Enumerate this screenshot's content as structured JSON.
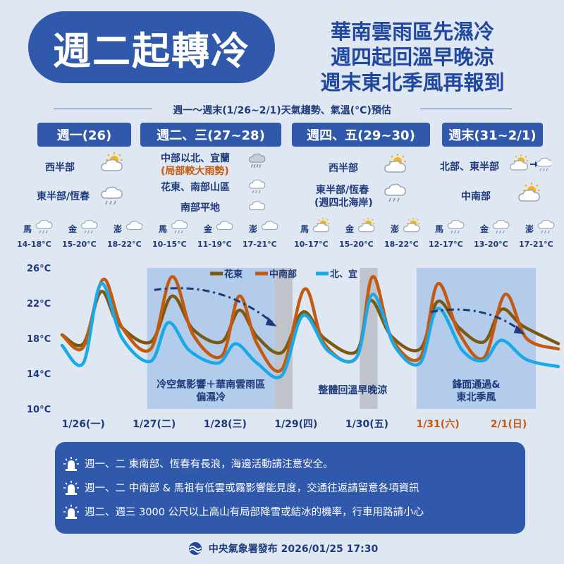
{
  "header": {
    "badge": "週二起轉冷",
    "headlines": [
      "華南雲雨區先濕冷",
      "週四起回溫早晚涼",
      "週末東北季風再報到"
    ]
  },
  "subtitle": "週一～週末(1/26~2/1)天氣趨勢、氣溫(°C)預估",
  "periods": [
    {
      "label": "週一(26)",
      "regions": [
        {
          "text": "西半部",
          "icon": "partly-cloudy-sun-icon"
        },
        {
          "text": "東半部/恆春",
          "icon": "rain-cloud-icon"
        }
      ]
    },
    {
      "label": "週二、三(27~28)",
      "regions": [
        {
          "text": "中部以北、宜蘭",
          "note": "(局部較大雨勢)",
          "icon": "heavy-rain-cloud-icon"
        },
        {
          "text": "花東、南部山區",
          "icon": "rain-cloud-icon"
        },
        {
          "text": "南部平地",
          "icon": "cloud-icon"
        }
      ]
    },
    {
      "label": "週四、五(29~30)",
      "regions": [
        {
          "text": "西半部",
          "icon": "partly-cloudy-sun-icon"
        },
        {
          "text": "東半部/恆春",
          "note": "(週四北海岸)",
          "icon": "rain-cloud-icon"
        }
      ]
    },
    {
      "label": "週末(31~2/1)",
      "regions": [
        {
          "text": "北部、東半部",
          "icon": "sun-to-rain-cloud-icon"
        },
        {
          "text": "中南部",
          "icon": "partly-cloudy-sun-icon"
        }
      ]
    }
  ],
  "islands": [
    [
      {
        "name": "馬",
        "range": "14-18°C",
        "icon": "rain-cloud-icon"
      },
      {
        "name": "金",
        "range": "15-20°C",
        "icon": "rain-cloud-icon"
      },
      {
        "name": "澎",
        "range": "18-22°C",
        "icon": "cloud-icon"
      }
    ],
    [
      {
        "name": "馬",
        "range": "10-15°C",
        "icon": "rain-cloud-icon"
      },
      {
        "name": "金",
        "range": "11-19°C",
        "icon": "cloud-icon"
      },
      {
        "name": "澎",
        "range": "17-21°C",
        "icon": "cloud-icon"
      }
    ],
    [
      {
        "name": "馬",
        "range": "10-17°C",
        "icon": "partly-cloudy-sun-icon"
      },
      {
        "name": "金",
        "range": "15-20°C",
        "icon": "partly-cloudy-sun-icon"
      },
      {
        "name": "澎",
        "range": "18-22°C",
        "icon": "partly-cloudy-sun-icon"
      }
    ],
    [
      {
        "name": "馬",
        "range": "12-17°C",
        "icon": "rain-cloud-icon"
      },
      {
        "name": "金",
        "range": "13-20°C",
        "icon": "rain-cloud-icon"
      },
      {
        "name": "澎",
        "range": "17-21°C",
        "icon": "rain-cloud-icon"
      }
    ]
  ],
  "chart_data": {
    "type": "line",
    "ylim": [
      10,
      26
    ],
    "yticks": [
      "10°C",
      "14°C",
      "18°C",
      "22°C",
      "26°C"
    ],
    "ytick_values": [
      10,
      14,
      18,
      22,
      26
    ],
    "xlim": [
      0,
      7
    ],
    "x_labels": [
      "1/26(一)",
      "1/27(二)",
      "1/28(三)",
      "1/29(四)",
      "1/30(五)",
      "1/31(六)",
      "2/1(日)"
    ],
    "x_label_colors": [
      "#1e3a7a",
      "#1e3a7a",
      "#1e3a7a",
      "#1e3a7a",
      "#1e3a7a",
      "#c45a10",
      "#c45a10"
    ],
    "grid": false,
    "legend_position": "top",
    "series": [
      {
        "name": "花東",
        "color": "#7a5a12",
        "points": [
          [
            0,
            18.4
          ],
          [
            0.3,
            17.4
          ],
          [
            0.55,
            23.3
          ],
          [
            0.8,
            19.6
          ],
          [
            1.25,
            17.6
          ],
          [
            1.55,
            22.8
          ],
          [
            1.85,
            19.0
          ],
          [
            2.25,
            17.6
          ],
          [
            2.5,
            21.2
          ],
          [
            2.75,
            18.2
          ],
          [
            3.1,
            16.4
          ],
          [
            3.4,
            21.0
          ],
          [
            3.7,
            18.0
          ],
          [
            4.15,
            16.5
          ],
          [
            4.35,
            22.3
          ],
          [
            4.65,
            18.2
          ],
          [
            5.05,
            16.8
          ],
          [
            5.3,
            22.2
          ],
          [
            5.6,
            19.2
          ],
          [
            5.95,
            17.6
          ],
          [
            6.2,
            21.3
          ],
          [
            6.5,
            19.4
          ],
          [
            7,
            17.4
          ]
        ]
      },
      {
        "name": "中南部",
        "color": "#c45a10",
        "points": [
          [
            0,
            18.4
          ],
          [
            0.3,
            17.0
          ],
          [
            0.58,
            24.7
          ],
          [
            0.85,
            19.2
          ],
          [
            1.25,
            16.8
          ],
          [
            1.55,
            25.0
          ],
          [
            1.85,
            18.4
          ],
          [
            2.25,
            16.0
          ],
          [
            2.5,
            22.8
          ],
          [
            2.75,
            17.4
          ],
          [
            3.1,
            14.5
          ],
          [
            3.42,
            23.6
          ],
          [
            3.7,
            17.4
          ],
          [
            4.15,
            15.8
          ],
          [
            4.38,
            25.0
          ],
          [
            4.65,
            18.0
          ],
          [
            5.05,
            15.8
          ],
          [
            5.3,
            24.2
          ],
          [
            5.6,
            18.6
          ],
          [
            5.95,
            15.8
          ],
          [
            6.25,
            23.0
          ],
          [
            6.55,
            18.0
          ],
          [
            7,
            16.8
          ]
        ]
      },
      {
        "name": "北、宜",
        "color": "#1aa9e8",
        "points": [
          [
            0,
            17.2
          ],
          [
            0.3,
            15.2
          ],
          [
            0.55,
            24.2
          ],
          [
            0.85,
            18.0
          ],
          [
            1.25,
            15.4
          ],
          [
            1.5,
            19.8
          ],
          [
            1.8,
            16.6
          ],
          [
            2.2,
            15.2
          ],
          [
            2.45,
            17.4
          ],
          [
            2.75,
            15.2
          ],
          [
            3.1,
            13.8
          ],
          [
            3.4,
            20.6
          ],
          [
            3.75,
            16.6
          ],
          [
            4.15,
            15.8
          ],
          [
            4.38,
            23.0
          ],
          [
            4.7,
            17.0
          ],
          [
            5.05,
            15.2
          ],
          [
            5.3,
            21.4
          ],
          [
            5.65,
            16.6
          ],
          [
            5.95,
            15.5
          ],
          [
            6.2,
            17.8
          ],
          [
            6.55,
            15.6
          ],
          [
            7,
            14.8
          ]
        ]
      }
    ],
    "shaded_regions": [
      {
        "from": 1.2,
        "to": 3.0,
        "label": [
          "冷空氣影響＋華南雲雨區",
          "偏濕冷"
        ]
      },
      {
        "from": 3.0,
        "to": 3.25,
        "gray": true
      },
      {
        "from": 4.2,
        "to": 4.45,
        "gray": true
      },
      {
        "from": 5.0,
        "to": 7.0,
        "label": [
          "鋒面通過&",
          "東北季風"
        ]
      }
    ],
    "unshaded_label": {
      "at": 4.1,
      "label": "整體回溫早晚涼"
    },
    "trend_arrows": [
      {
        "from": [
          1.3,
          23.5
        ],
        "to": [
          3.0,
          19.6
        ]
      },
      {
        "from": [
          5.2,
          21.0
        ],
        "to": [
          6.5,
          18.7
        ]
      }
    ]
  },
  "notes": [
    "週一、二  東南部、恆春有長浪，海邊活動請注意安全。",
    "週一、二  中南部 & 馬祖有低雲或霧影響能見度，交通往返請留意各項資訊",
    "週二、週三 3000 公尺以上高山有局部降雪或結冰的機率，行車用路請小心"
  ],
  "footer": "中央氣象署發布 2026/01/25 17:30"
}
